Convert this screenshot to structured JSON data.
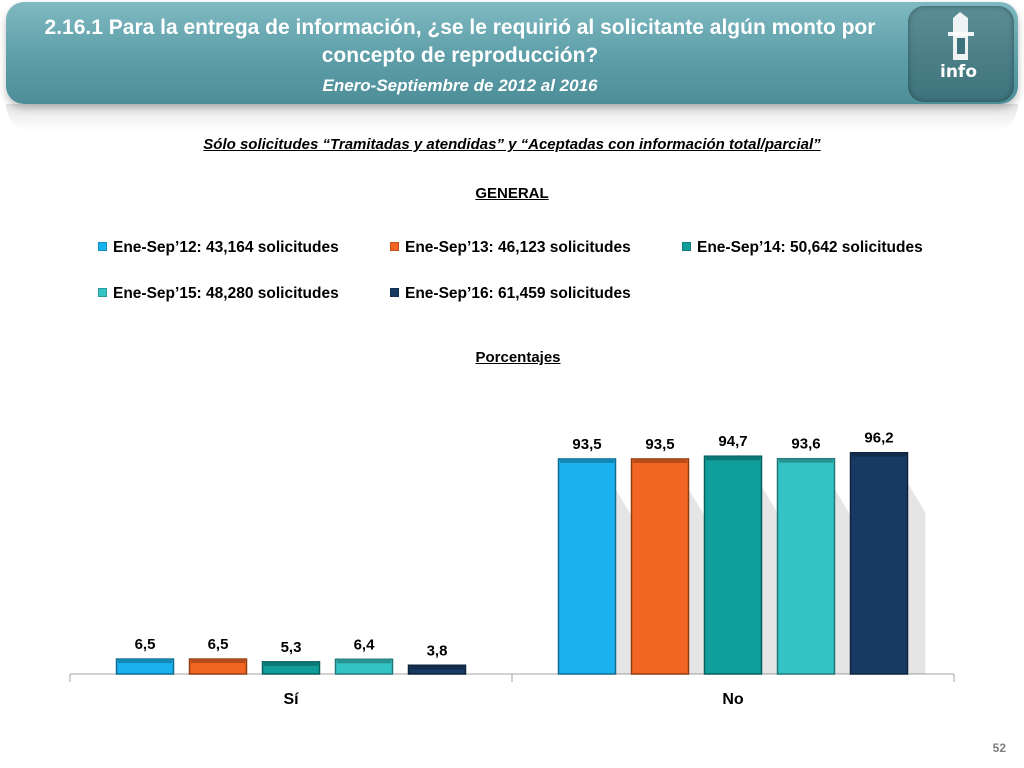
{
  "header": {
    "title": "2.16.1 Para la entrega de información, ¿se le requirió al solicitante algún monto por concepto de reproducción?",
    "subtitle": "Enero-Septiembre de 2012 al 2016",
    "logo_text": "info"
  },
  "subtitles": {
    "filter": "Sólo solicitudes “Tramitadas y atendidas” y “Aceptadas con información total/parcial”",
    "general": "GENERAL",
    "units": "Porcentajes"
  },
  "page_number": "52",
  "chart_data": {
    "type": "bar",
    "categories": [
      "Sí",
      "No"
    ],
    "ylim": [
      0,
      100
    ],
    "grid": false,
    "legend_position": "top",
    "series": [
      {
        "name": "Ene-Sep’12: 43,164 solicitudes",
        "values": [
          6.5,
          93.5
        ],
        "labels": [
          "6,5",
          "93,5"
        ],
        "color": "#1ab2ef"
      },
      {
        "name": "Ene-Sep’13: 46,123 solicitudes",
        "values": [
          6.5,
          93.5
        ],
        "labels": [
          "6,5",
          "93,5"
        ],
        "color": "#f26522"
      },
      {
        "name": "Ene-Sep’14: 50,642 solicitudes",
        "values": [
          5.3,
          94.7
        ],
        "labels": [
          "5,3",
          "94,7"
        ],
        "color": "#0f9e9a"
      },
      {
        "name": "Ene-Sep’15: 48,280 solicitudes",
        "values": [
          6.4,
          93.6
        ],
        "labels": [
          "6,4",
          "93,6"
        ],
        "color": "#35c4c4"
      },
      {
        "name": "Ene-Sep’16: 61,459 solicitudes",
        "values": [
          3.8,
          96.2
        ],
        "labels": [
          "3,8",
          "96,2"
        ],
        "color": "#173a63"
      }
    ]
  }
}
